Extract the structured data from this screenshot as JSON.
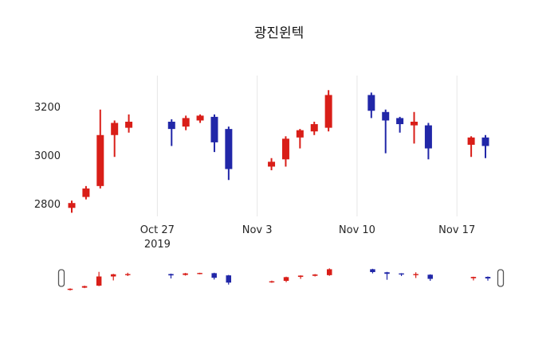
{
  "chart_data": {
    "type": "candlestick",
    "title": "광진윈텍",
    "legend": "none",
    "grid": "vertical-only",
    "colors": {
      "increasing": "#d91e18",
      "decreasing": "#2127a8",
      "gridline": "#e6e6e6",
      "tick_text": "#262626",
      "background": "#ffffff"
    },
    "y_axis": {
      "ticks": [
        2800,
        3000,
        3200
      ],
      "range": [
        2750,
        3330
      ]
    },
    "x_axis": {
      "ticks": [
        {
          "label": "Oct 27",
          "sublabel": "2019",
          "date": "2019-10-27"
        },
        {
          "label": "Nov 3",
          "date": "2019-11-03"
        },
        {
          "label": "Nov 10",
          "date": "2019-11-10"
        },
        {
          "label": "Nov 17",
          "date": "2019-11-17"
        }
      ]
    },
    "rangeslider": {
      "visible": true
    },
    "candles": [
      {
        "date": "2019-10-21",
        "open": 2785,
        "high": 2815,
        "low": 2765,
        "close": 2805
      },
      {
        "date": "2019-10-22",
        "open": 2830,
        "high": 2875,
        "low": 2820,
        "close": 2865
      },
      {
        "date": "2019-10-23",
        "open": 2875,
        "high": 3190,
        "low": 2865,
        "close": 3085
      },
      {
        "date": "2019-10-24",
        "open": 3085,
        "high": 3145,
        "low": 2995,
        "close": 3135
      },
      {
        "date": "2019-10-25",
        "open": 3115,
        "high": 3170,
        "low": 3095,
        "close": 3140
      },
      {
        "date": "2019-10-28",
        "open": 3140,
        "high": 3150,
        "low": 3040,
        "close": 3110
      },
      {
        "date": "2019-10-29",
        "open": 3120,
        "high": 3165,
        "low": 3105,
        "close": 3155
      },
      {
        "date": "2019-10-30",
        "open": 3145,
        "high": 3170,
        "low": 3135,
        "close": 3165
      },
      {
        "date": "2019-10-31",
        "open": 3160,
        "high": 3170,
        "low": 3015,
        "close": 3055
      },
      {
        "date": "2019-11-01",
        "open": 3110,
        "high": 3120,
        "low": 2900,
        "close": 2945
      },
      {
        "date": "2019-11-04",
        "open": 2955,
        "high": 2990,
        "low": 2940,
        "close": 2975
      },
      {
        "date": "2019-11-05",
        "open": 2985,
        "high": 3080,
        "low": 2955,
        "close": 3070
      },
      {
        "date": "2019-11-06",
        "open": 3075,
        "high": 3110,
        "low": 3030,
        "close": 3105
      },
      {
        "date": "2019-11-07",
        "open": 3100,
        "high": 3140,
        "low": 3085,
        "close": 3130
      },
      {
        "date": "2019-11-08",
        "open": 3115,
        "high": 3270,
        "low": 3100,
        "close": 3250
      },
      {
        "date": "2019-11-11",
        "open": 3250,
        "high": 3260,
        "low": 3155,
        "close": 3185
      },
      {
        "date": "2019-11-12",
        "open": 3180,
        "high": 3190,
        "low": 3010,
        "close": 3145
      },
      {
        "date": "2019-11-13",
        "open": 3155,
        "high": 3160,
        "low": 3095,
        "close": 3130
      },
      {
        "date": "2019-11-14",
        "open": 3125,
        "high": 3180,
        "low": 3050,
        "close": 3140
      },
      {
        "date": "2019-11-15",
        "open": 3125,
        "high": 3135,
        "low": 2985,
        "close": 3030
      },
      {
        "date": "2019-11-18",
        "open": 3045,
        "high": 3080,
        "low": 2995,
        "close": 3075
      },
      {
        "date": "2019-11-19",
        "open": 3075,
        "high": 3085,
        "low": 2990,
        "close": 3040
      }
    ]
  }
}
